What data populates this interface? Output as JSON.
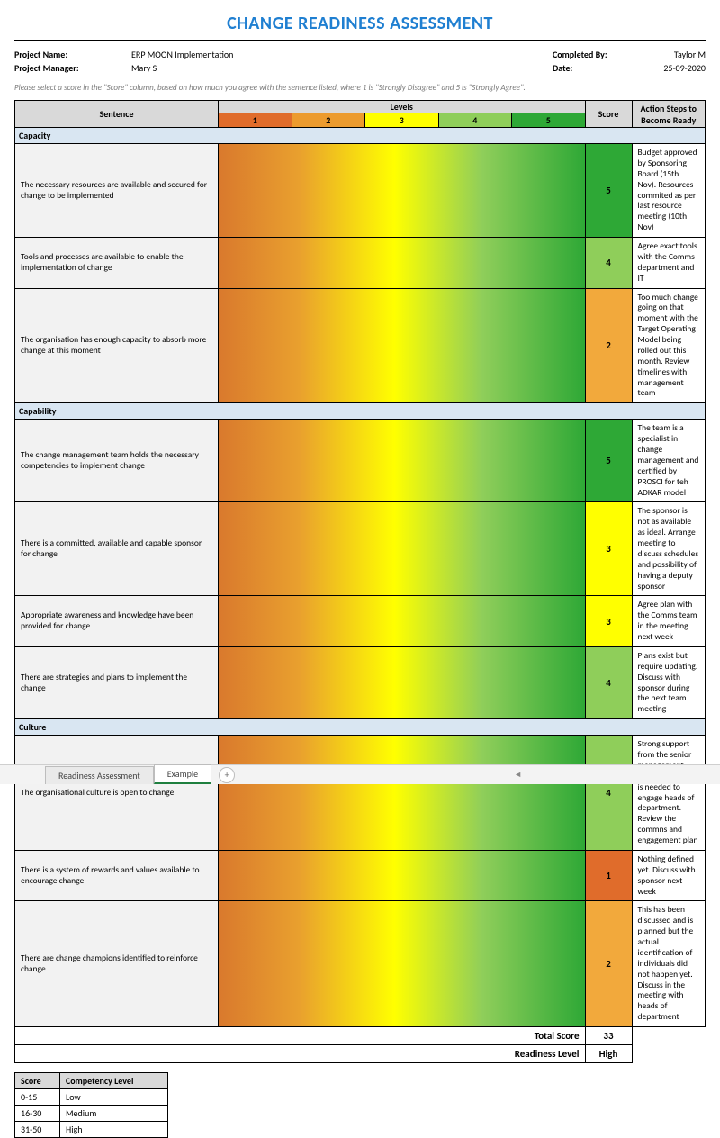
{
  "title": "CHANGE READINESS ASSESSMENT",
  "meta": {
    "projectNameLabel": "Project Name:",
    "projectName": "ERP MOON Implementation",
    "completedByLabel": "Completed By:",
    "completedBy": "Taylor M",
    "projectManagerLabel": "Project Manager:",
    "projectManager": "Mary S",
    "dateLabel": "Date:",
    "date": "25-09-2020"
  },
  "instruction": "Please select a score in the \"Score\" column, based on how much you agree with the sentence listed, where 1 is \"Strongly Disagree\" and 5 is \"Strongly Agree\".",
  "headers": {
    "sentence": "Sentence",
    "levels": "Levels",
    "score": "Score",
    "action": "Action Steps to Become Ready"
  },
  "levelNumbers": [
    "1",
    "2",
    "3",
    "4",
    "5"
  ],
  "levelColors": [
    "#e06c2b",
    "#ec9b2e",
    "#ffff00",
    "#8fce5a",
    "#2ea836"
  ],
  "scoreColors": {
    "1": "#e06c2b",
    "2": "#f2a93c",
    "3": "#ffff00",
    "4": "#8fce5a",
    "5": "#2ea836"
  },
  "gradientCss": "linear-gradient(to right,#d9792d 0%,#e9a02e 22%,#ffff00 48%,#8fce5a 72%,#2ea836 100%)",
  "sections": [
    {
      "name": "Capacity",
      "rows": [
        {
          "sentence": "The necessary resources are available and secured for change to be implemented",
          "score": "5",
          "action": "Budget approved by Sponsoring Board (15th Nov). Resources commited as per last resource meeting (10th Nov)"
        },
        {
          "sentence": "Tools and processes are available to enable the implementation of change",
          "score": "4",
          "action": "Agree exact tools with the Comms department and IT"
        },
        {
          "sentence": "The organisation has enough capacity to absorb more change at this moment",
          "score": "2",
          "action": "Too much change going on that moment with the Target Operating Model being rolled out this month. Review timelines with management team"
        }
      ]
    },
    {
      "name": "Capability",
      "rows": [
        {
          "sentence": "The change management team holds the necessary competencies to implement change",
          "score": "5",
          "action": "The team is a specialist in change management and certified by PROSCI for teh ADKAR model"
        },
        {
          "sentence": "There is a committed, available and capable sponsor for change",
          "score": "3",
          "action": "The sponsor is not as available as ideal. Arrange meeting to discuss schedules and possibility of having a deputy sponsor"
        },
        {
          "sentence": "Appropriate awareness and knowledge have been provided for change",
          "score": "3",
          "action": "Agree plan with the Comms team in the meeting next week"
        },
        {
          "sentence": "There are strategies and plans to implement the change",
          "score": "4",
          "action": "Plans exist but require updating. Discuss with sponsor during the next team meeting"
        }
      ]
    },
    {
      "name": "Culture",
      "rows": [
        {
          "sentence": "The organisational culture is open to change",
          "score": "4",
          "action": "Strong support from the senior management team. More work is needed to engage heads of department. Review the commns and engagement plan"
        },
        {
          "sentence": "There is a system of rewards and values available to encourage change",
          "score": "1",
          "action": "Nothing defined yet. Discuss with sponsor next week"
        },
        {
          "sentence": "There are change champions identified to reinforce change",
          "score": "2",
          "action": "This has been discussed and is planned but the actual identification of individuals did not happen yet. Discuss in the meeting with heads of department"
        }
      ]
    }
  ],
  "totals": {
    "totalLabel": "Total Score",
    "totalValue": "33",
    "readinessLabel": "Readiness Level",
    "readinessValue": "High"
  },
  "legend": {
    "headers": {
      "score": "Score",
      "comp": "Competency Level"
    },
    "rows": [
      {
        "range": "0-15",
        "level": "Low"
      },
      {
        "range": "16-30",
        "level": "Medium"
      },
      {
        "range": "31-50",
        "level": "High"
      }
    ]
  },
  "tabs": {
    "t1": "Readiness Assessment",
    "t2": "Example",
    "plus": "+"
  }
}
